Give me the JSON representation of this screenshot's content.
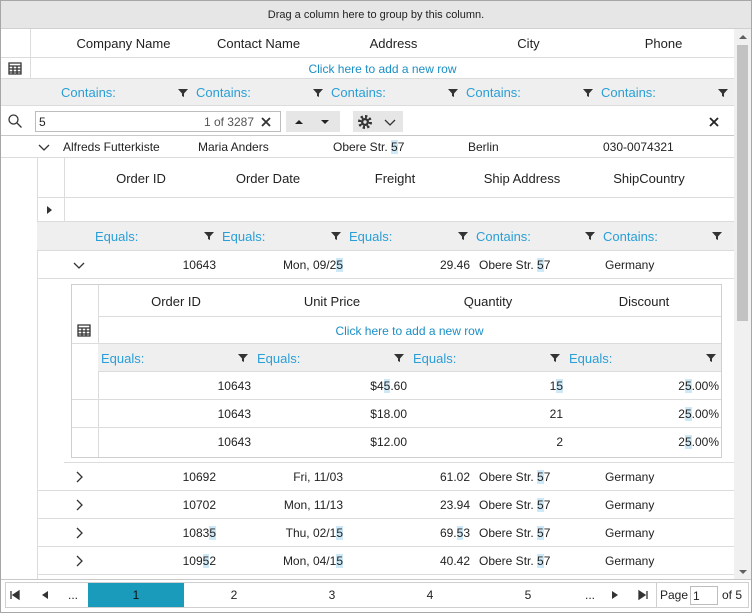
{
  "group_panel": "Drag a column here to group by this column.",
  "columns": [
    "Company Name",
    "Contact Name",
    "Address",
    "City",
    "Phone"
  ],
  "new_row": "Click here to add a new row",
  "filters": [
    "Contains:",
    "Contains:",
    "Contains:",
    "Contains:",
    "Contains:"
  ],
  "search": {
    "text": "5",
    "count": "1 of 3287"
  },
  "rows": [
    [
      "Alfreds Futterkiste",
      "Maria Anders",
      "Obere Str. 57",
      "Berlin",
      "030-0074321"
    ]
  ],
  "orders": {
    "columns": [
      "Order ID",
      "Order Date",
      "Freight",
      "Ship Address",
      "ShipCountry"
    ],
    "filters": [
      "Equals:",
      "Equals:",
      "Equals:",
      "Contains:",
      "Contains:"
    ],
    "rows": [
      [
        "10643",
        "Mon, 09/25",
        "29.46",
        "Obere Str. 57",
        "Germany"
      ],
      [
        "10692",
        "Fri, 11/03",
        "61.02",
        "Obere Str. 57",
        "Germany"
      ],
      [
        "10702",
        "Mon, 11/13",
        "23.94",
        "Obere Str. 57",
        "Germany"
      ],
      [
        "10835",
        "Thu, 02/15",
        "69.53",
        "Obere Str. 57",
        "Germany"
      ],
      [
        "10952",
        "Mon, 04/15",
        "40.42",
        "Obere Str. 57",
        "Germany"
      ]
    ]
  },
  "details": {
    "columns": [
      "Order ID",
      "Unit Price",
      "Quantity",
      "Discount"
    ],
    "new_row": "Click here to add a new row",
    "filters": [
      "Equals:",
      "Equals:",
      "Equals:",
      "Equals:"
    ],
    "rows": [
      [
        "10643",
        "$45.60",
        "15",
        "25.00%"
      ],
      [
        "10643",
        "$18.00",
        "21",
        "25.00%"
      ],
      [
        "10643",
        "$12.00",
        "2",
        "25.00%"
      ]
    ]
  },
  "pager": {
    "ellipsis": "...",
    "pages": [
      "1",
      "2",
      "3",
      "4",
      "5"
    ],
    "page_label": "Page",
    "page": "1",
    "of": "of 5"
  }
}
